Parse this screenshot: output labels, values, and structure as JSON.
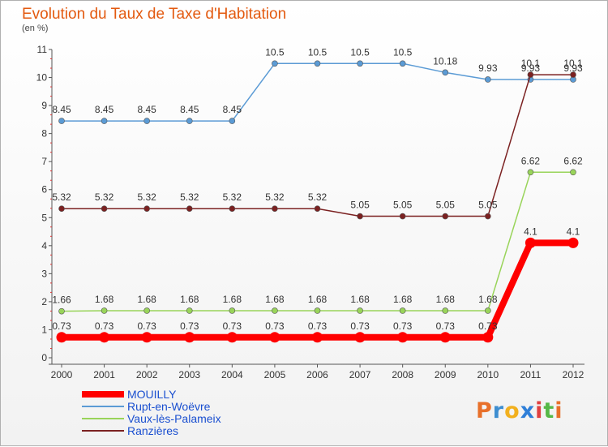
{
  "title": "Evolution du Taux de Taxe d'Habitation",
  "subtitle": "(en %)",
  "logo": {
    "letters": [
      "P",
      "r",
      "o",
      "x",
      "i",
      "t",
      "i"
    ],
    "colors": [
      "#e8702a",
      "#3e8ed0",
      "#f2b01e",
      "#2f7fd8",
      "#e04040",
      "#56b847",
      "#e8702a"
    ]
  },
  "chart_data": {
    "type": "line",
    "x": [
      "2000",
      "2001",
      "2002",
      "2003",
      "2004",
      "2005",
      "2006",
      "2007",
      "2008",
      "2009",
      "2010",
      "2011",
      "2012"
    ],
    "ylim": [
      0,
      11
    ],
    "yticks": [
      "0",
      "1",
      "2",
      "3",
      "4",
      "5",
      "6",
      "7",
      "8",
      "9",
      "10",
      "11"
    ],
    "grid": false,
    "legend_position": "bottom-left",
    "series": [
      {
        "name": "Rupt-en-Woëvre",
        "color": "#5b9bd5",
        "width": 1.5,
        "values": [
          8.45,
          8.45,
          8.45,
          8.45,
          8.45,
          10.5,
          10.5,
          10.5,
          10.5,
          10.18,
          9.93,
          9.93,
          9.93
        ],
        "labels": [
          "8.45",
          "8.45",
          "8.45",
          "8.45",
          "8.45",
          "10.5",
          "10.5",
          "10.5",
          "10.5",
          "10.18",
          "9.93",
          "9.93",
          "9.93"
        ]
      },
      {
        "name": "Ranzières",
        "color": "#7b2121",
        "width": 1.5,
        "values": [
          5.32,
          5.32,
          5.32,
          5.32,
          5.32,
          5.32,
          5.32,
          5.05,
          5.05,
          5.05,
          5.05,
          10.1,
          10.1
        ],
        "labels": [
          "5.32",
          "5.32",
          "5.32",
          "5.32",
          "5.32",
          "5.32",
          "5.32",
          "5.05",
          "5.05",
          "5.05",
          "5.05",
          "10.1",
          "10.1"
        ]
      },
      {
        "name": "Vaux-lès-Palameix",
        "color": "#99d45a",
        "width": 1.5,
        "values": [
          1.66,
          1.68,
          1.68,
          1.68,
          1.68,
          1.68,
          1.68,
          1.68,
          1.68,
          1.68,
          1.68,
          6.62,
          6.62
        ],
        "labels": [
          "1.66",
          "1.68",
          "1.68",
          "1.68",
          "1.68",
          "1.68",
          "1.68",
          "1.68",
          "1.68",
          "1.68",
          "1.68",
          "6.62",
          "6.62"
        ]
      },
      {
        "name": "MOUILLY",
        "color": "#ff0000",
        "width": 8,
        "values": [
          0.73,
          0.73,
          0.73,
          0.73,
          0.73,
          0.73,
          0.73,
          0.73,
          0.73,
          0.73,
          0.73,
          4.1,
          4.1
        ],
        "labels": [
          "0.73",
          "0.73",
          "0.73",
          "0.73",
          "0.73",
          "0.73",
          "0.73",
          "0.73",
          "0.73",
          "0.73",
          "0.73",
          "4.1",
          "4.1"
        ]
      }
    ],
    "legend": [
      "MOUILLY",
      "Rupt-en-Woëvre",
      "Vaux-lès-Palameix",
      "Ranzières"
    ]
  }
}
